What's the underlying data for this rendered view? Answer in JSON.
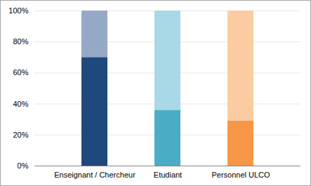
{
  "chart_data": {
    "type": "bar",
    "stacked": true,
    "grid": true,
    "categories": [
      "Enseignant / Chercheur",
      "Etudiant",
      "Personnel ULCO"
    ],
    "series": [
      {
        "values": [
          70,
          36,
          29
        ],
        "colors": [
          "#1f497d",
          "#4bacc6",
          "#f79646"
        ]
      },
      {
        "values": [
          30,
          64,
          71
        ],
        "colors": [
          "#95a9c7",
          "#a9d8e6",
          "#fbcca2"
        ]
      }
    ],
    "ylim": [
      0,
      100
    ],
    "yticks": [
      {
        "value": 0,
        "label": "0%"
      },
      {
        "value": 20,
        "label": "20%"
      },
      {
        "value": 40,
        "label": "40%"
      },
      {
        "value": 60,
        "label": "60%"
      },
      {
        "value": 80,
        "label": "80%"
      },
      {
        "value": 100,
        "label": "100%"
      }
    ]
  }
}
